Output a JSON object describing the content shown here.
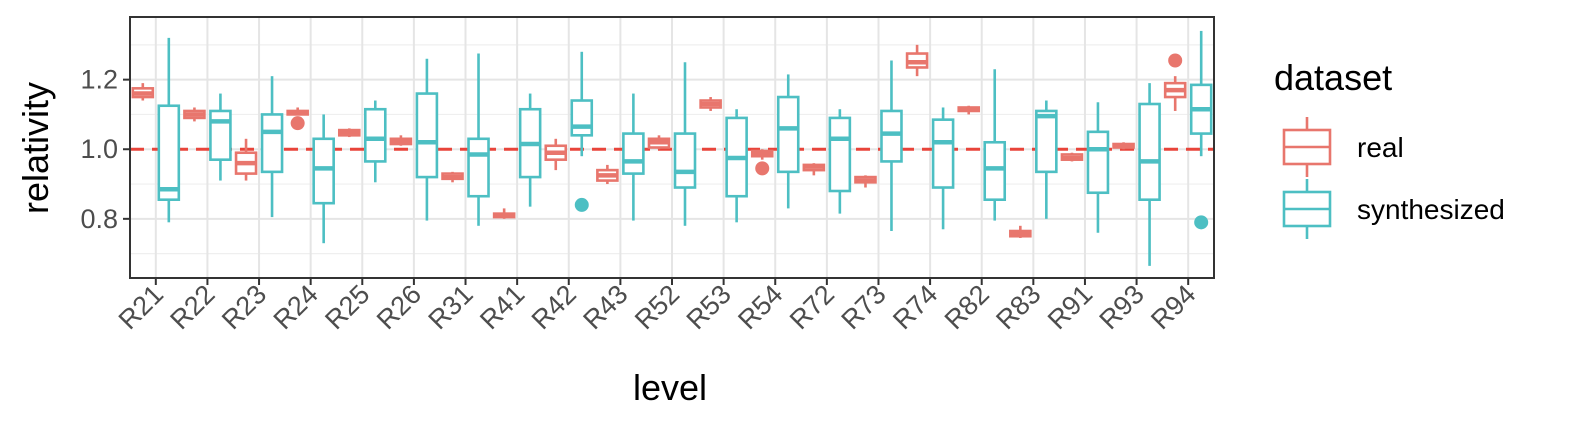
{
  "chart_data": {
    "type": "boxplot",
    "xlabel": "level",
    "ylabel": "relativity",
    "ylim": [
      0.63,
      1.38
    ],
    "yticks": [
      0.8,
      1.0,
      1.2
    ],
    "ytick_labels": [
      "0.8",
      "1.0",
      "1.2"
    ],
    "reference_line": {
      "y": 1.0,
      "style": "dashed",
      "color": "#e8443a"
    },
    "grid": true,
    "legend": {
      "title": "dataset",
      "placement": "right",
      "entries": [
        {
          "label": "real",
          "color": "#E8766D"
        },
        {
          "label": "synthesized",
          "color": "#4DBFC3"
        }
      ]
    },
    "categories": [
      "R21",
      "R22",
      "R23",
      "R24",
      "R25",
      "R26",
      "R31",
      "R41",
      "R42",
      "R43",
      "R52",
      "R53",
      "R54",
      "R72",
      "R73",
      "R74",
      "R82",
      "R83",
      "R91",
      "R93",
      "R94"
    ],
    "series": [
      {
        "name": "real",
        "color": "#E8766D",
        "boxes": [
          {
            "min": 1.14,
            "q1": 1.15,
            "median": 1.16,
            "q3": 1.175,
            "max": 1.19,
            "outliers": []
          },
          {
            "min": 1.08,
            "q1": 1.09,
            "median": 1.1,
            "q3": 1.11,
            "max": 1.12,
            "outliers": []
          },
          {
            "min": 0.91,
            "q1": 0.93,
            "median": 0.96,
            "q3": 0.99,
            "max": 1.03,
            "outliers": []
          },
          {
            "min": 1.1,
            "q1": 1.1,
            "median": 1.105,
            "q3": 1.11,
            "max": 1.12,
            "outliers": [
              1.075
            ]
          },
          {
            "min": 1.035,
            "q1": 1.04,
            "median": 1.05,
            "q3": 1.055,
            "max": 1.06,
            "outliers": []
          },
          {
            "min": 1.01,
            "q1": 1.015,
            "median": 1.02,
            "q3": 1.03,
            "max": 1.04,
            "outliers": []
          },
          {
            "min": 0.905,
            "q1": 0.915,
            "median": 0.92,
            "q3": 0.93,
            "max": 0.935,
            "outliers": []
          },
          {
            "min": 0.8,
            "q1": 0.805,
            "median": 0.81,
            "q3": 0.815,
            "max": 0.83,
            "outliers": []
          },
          {
            "min": 0.94,
            "q1": 0.97,
            "median": 0.99,
            "q3": 1.01,
            "max": 1.03,
            "outliers": []
          },
          {
            "min": 0.9,
            "q1": 0.91,
            "median": 0.925,
            "q3": 0.94,
            "max": 0.955,
            "outliers": []
          },
          {
            "min": 1.0,
            "q1": 1.005,
            "median": 1.02,
            "q3": 1.03,
            "max": 1.04,
            "outliers": []
          },
          {
            "min": 1.11,
            "q1": 1.12,
            "median": 1.13,
            "q3": 1.14,
            "max": 1.15,
            "outliers": []
          },
          {
            "min": 0.97,
            "q1": 0.98,
            "median": 0.99,
            "q3": 0.995,
            "max": 1.0,
            "outliers": [
              0.945
            ]
          },
          {
            "min": 0.925,
            "q1": 0.94,
            "median": 0.95,
            "q3": 0.955,
            "max": 0.96,
            "outliers": []
          },
          {
            "min": 0.89,
            "q1": 0.905,
            "median": 0.91,
            "q3": 0.92,
            "max": 0.925,
            "outliers": []
          },
          {
            "min": 1.21,
            "q1": 1.235,
            "median": 1.25,
            "q3": 1.275,
            "max": 1.3,
            "outliers": []
          },
          {
            "min": 1.1,
            "q1": 1.11,
            "median": 1.115,
            "q3": 1.12,
            "max": 1.125,
            "outliers": []
          },
          {
            "min": 0.745,
            "q1": 0.75,
            "median": 0.76,
            "q3": 0.765,
            "max": 0.78,
            "outliers": []
          },
          {
            "min": 0.965,
            "q1": 0.97,
            "median": 0.975,
            "q3": 0.985,
            "max": 0.99,
            "outliers": []
          },
          {
            "min": 1.0,
            "q1": 1.005,
            "median": 1.01,
            "q3": 1.015,
            "max": 1.02,
            "outliers": []
          },
          {
            "min": 1.11,
            "q1": 1.15,
            "median": 1.17,
            "q3": 1.19,
            "max": 1.21,
            "outliers": [
              1.255
            ]
          }
        ]
      },
      {
        "name": "synthesized",
        "color": "#4DBFC3",
        "boxes": [
          {
            "min": 0.79,
            "q1": 0.855,
            "median": 0.885,
            "q3": 1.125,
            "max": 1.32,
            "outliers": []
          },
          {
            "min": 0.91,
            "q1": 0.97,
            "median": 1.08,
            "q3": 1.11,
            "max": 1.16,
            "outliers": []
          },
          {
            "min": 0.805,
            "q1": 0.935,
            "median": 1.05,
            "q3": 1.1,
            "max": 1.21,
            "outliers": []
          },
          {
            "min": 0.73,
            "q1": 0.845,
            "median": 0.945,
            "q3": 1.03,
            "max": 1.1,
            "outliers": []
          },
          {
            "min": 0.905,
            "q1": 0.965,
            "median": 1.03,
            "q3": 1.115,
            "max": 1.14,
            "outliers": []
          },
          {
            "min": 0.795,
            "q1": 0.92,
            "median": 1.02,
            "q3": 1.16,
            "max": 1.26,
            "outliers": []
          },
          {
            "min": 0.78,
            "q1": 0.865,
            "median": 0.985,
            "q3": 1.03,
            "max": 1.275,
            "outliers": []
          },
          {
            "min": 0.835,
            "q1": 0.92,
            "median": 1.015,
            "q3": 1.115,
            "max": 1.16,
            "outliers": []
          },
          {
            "min": 0.98,
            "q1": 1.04,
            "median": 1.065,
            "q3": 1.14,
            "max": 1.28,
            "outliers": [
              0.84
            ]
          },
          {
            "min": 0.795,
            "q1": 0.93,
            "median": 0.965,
            "q3": 1.045,
            "max": 1.16,
            "outliers": []
          },
          {
            "min": 0.78,
            "q1": 0.89,
            "median": 0.935,
            "q3": 1.045,
            "max": 1.25,
            "outliers": []
          },
          {
            "min": 0.79,
            "q1": 0.865,
            "median": 0.975,
            "q3": 1.09,
            "max": 1.115,
            "outliers": []
          },
          {
            "min": 0.83,
            "q1": 0.935,
            "median": 1.06,
            "q3": 1.15,
            "max": 1.215,
            "outliers": []
          },
          {
            "min": 0.815,
            "q1": 0.88,
            "median": 1.03,
            "q3": 1.09,
            "max": 1.115,
            "outliers": []
          },
          {
            "min": 0.765,
            "q1": 0.965,
            "median": 1.045,
            "q3": 1.11,
            "max": 1.255,
            "outliers": []
          },
          {
            "min": 0.77,
            "q1": 0.89,
            "median": 1.02,
            "q3": 1.085,
            "max": 1.12,
            "outliers": []
          },
          {
            "min": 0.795,
            "q1": 0.855,
            "median": 0.945,
            "q3": 1.02,
            "max": 1.23,
            "outliers": []
          },
          {
            "min": 0.8,
            "q1": 0.935,
            "median": 1.095,
            "q3": 1.11,
            "max": 1.14,
            "outliers": []
          },
          {
            "min": 0.76,
            "q1": 0.875,
            "median": 1.0,
            "q3": 1.05,
            "max": 1.135,
            "outliers": []
          },
          {
            "min": 0.665,
            "q1": 0.855,
            "median": 0.965,
            "q3": 1.13,
            "max": 1.19,
            "outliers": []
          },
          {
            "min": 0.98,
            "q1": 1.045,
            "median": 1.115,
            "q3": 1.185,
            "max": 1.34,
            "outliers": [
              0.79
            ]
          }
        ]
      }
    ]
  }
}
